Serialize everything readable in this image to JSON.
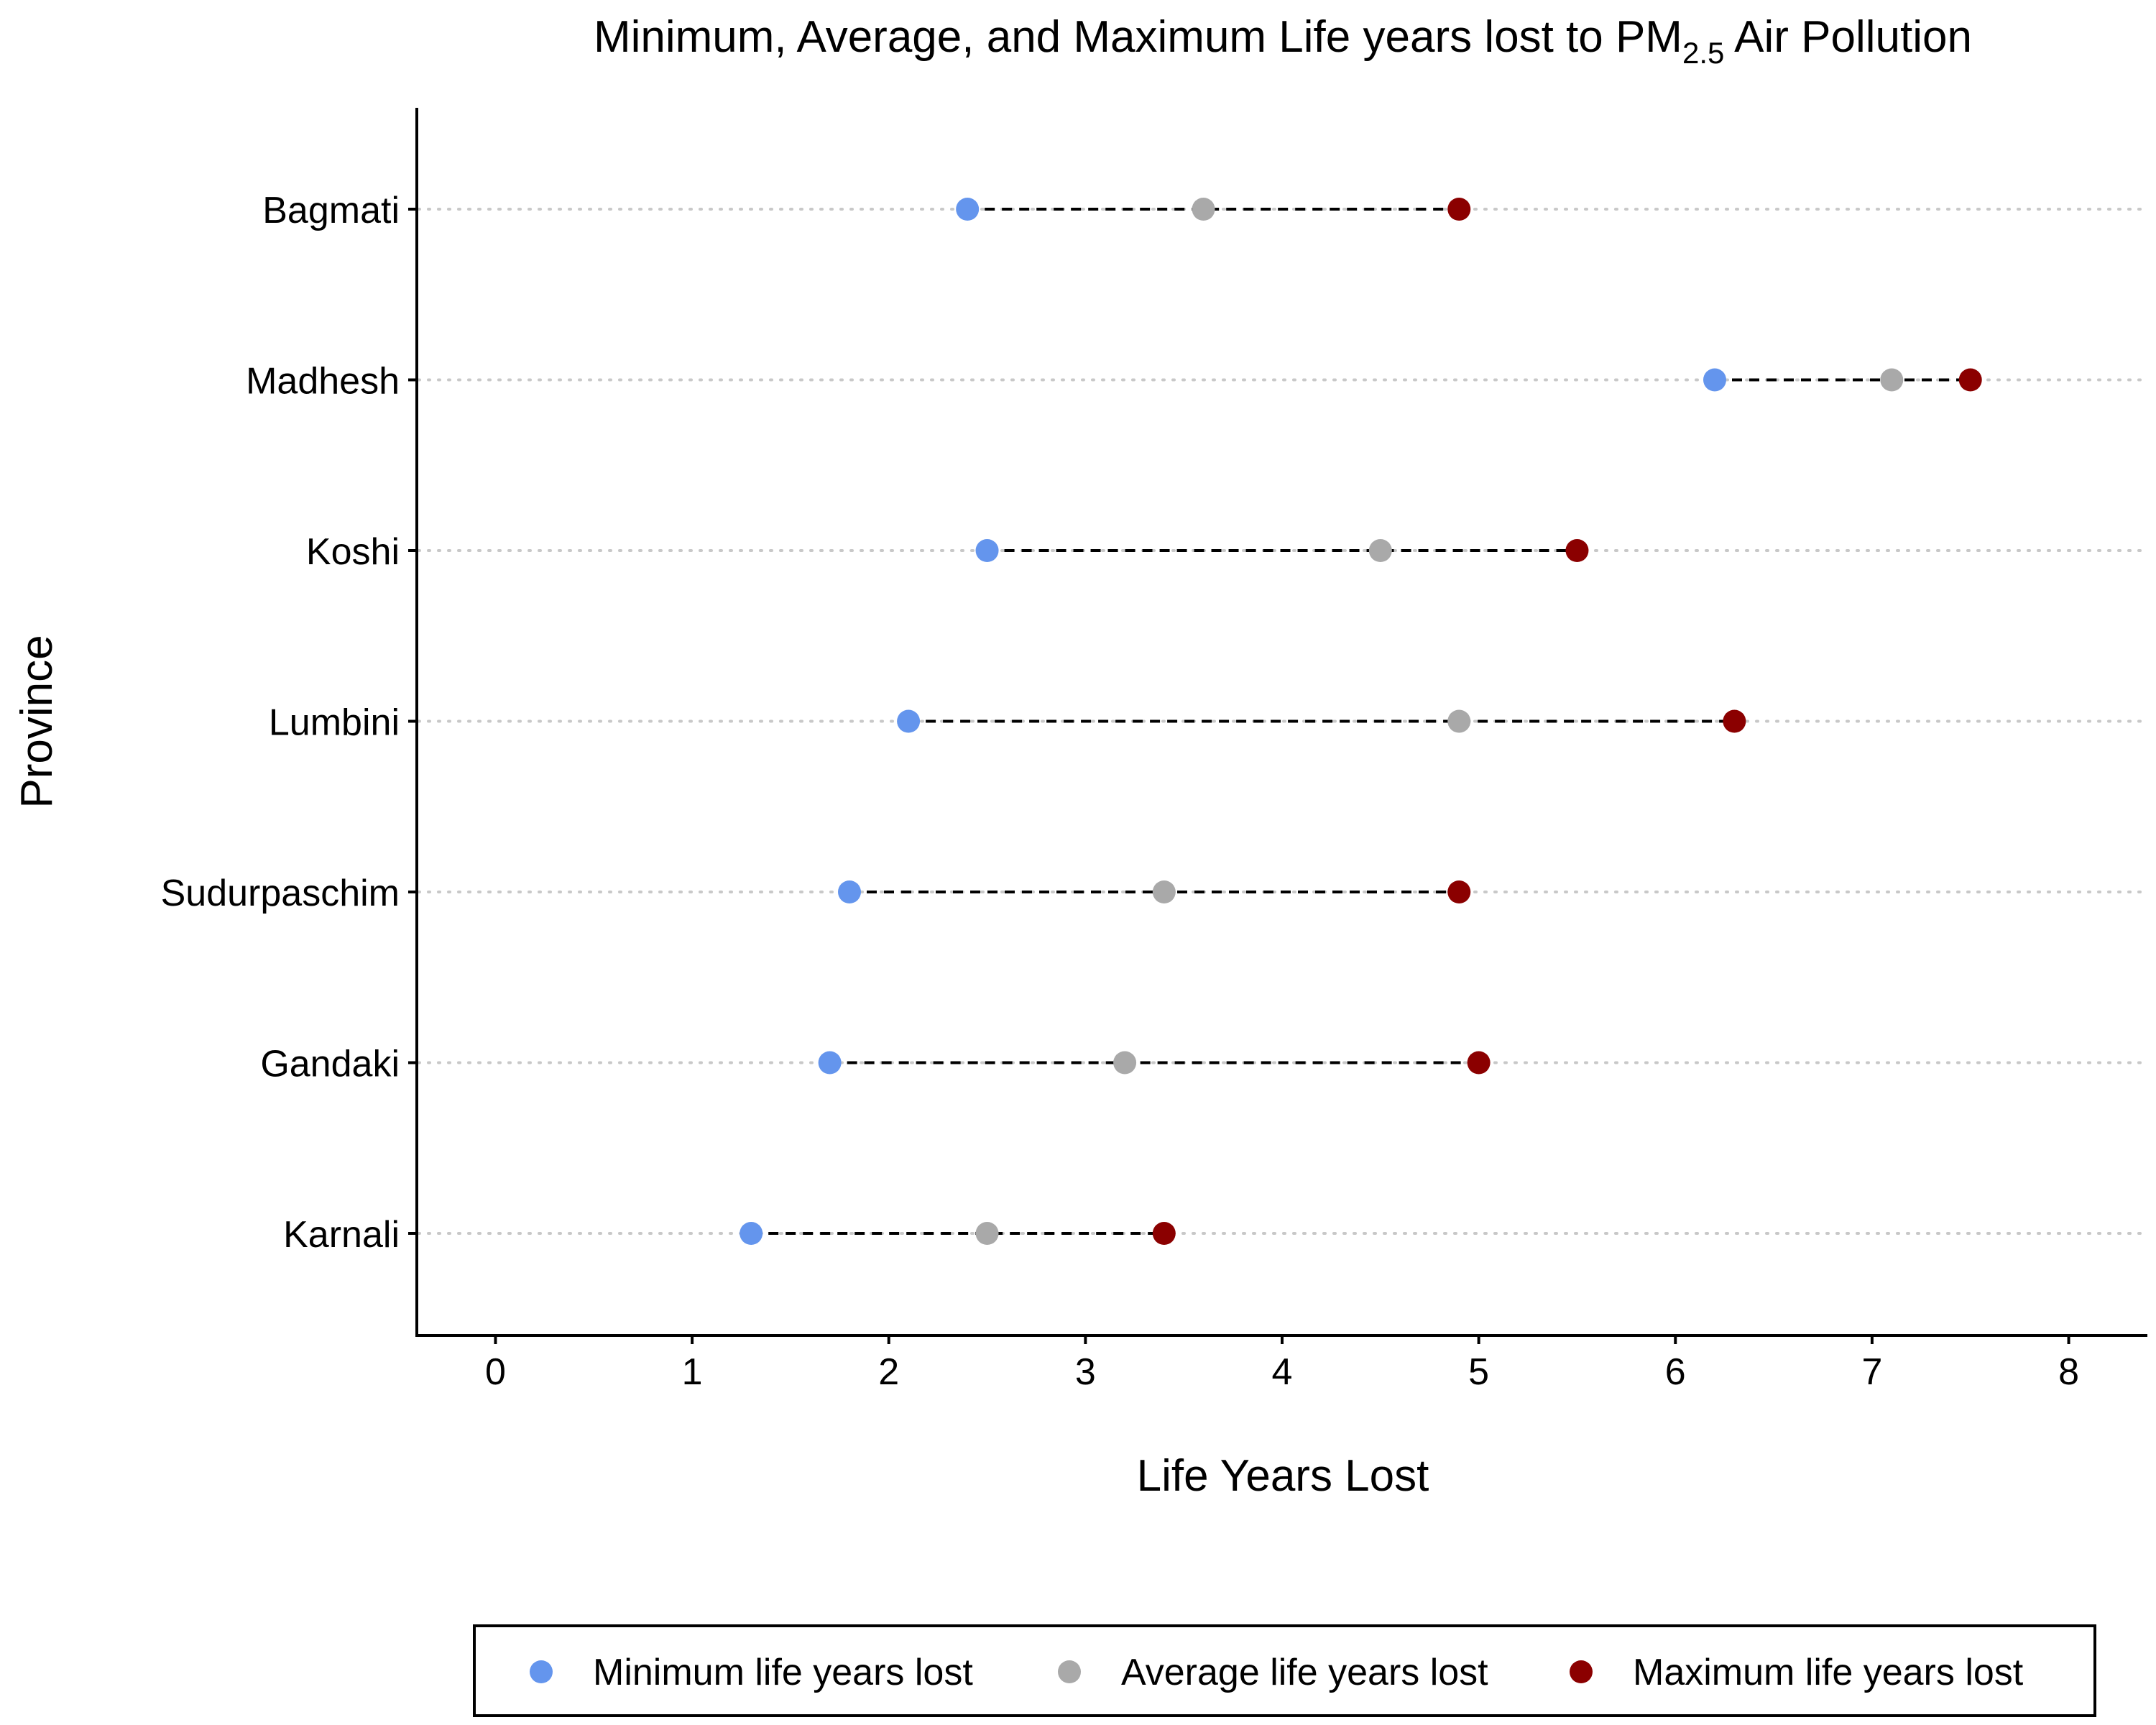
{
  "chart_data": {
    "type": "dumbbell",
    "title": {
      "prefix": "Minimum, Average, and Maximum Life years lost to PM",
      "subscript": "2.5",
      "suffix": " Air Pollution"
    },
    "xlabel": "Life Years Lost",
    "ylabel": "Province",
    "xlim": [
      -0.4,
      8.4
    ],
    "x_ticks": [
      0,
      1,
      2,
      3,
      4,
      5,
      6,
      7,
      8
    ],
    "categories": [
      "Bagmati",
      "Madhesh",
      "Koshi",
      "Lumbini",
      "Sudurpaschim",
      "Gandaki",
      "Karnali"
    ],
    "series": [
      {
        "name": "Minimum life years lost",
        "color": "#6495ED",
        "values": [
          2.4,
          6.2,
          2.5,
          2.1,
          1.8,
          1.7,
          1.3
        ]
      },
      {
        "name": "Average life years lost",
        "color": "#A9A9A9",
        "values": [
          3.6,
          7.1,
          4.5,
          4.9,
          3.4,
          3.2,
          2.5
        ]
      },
      {
        "name": "Maximum life years lost",
        "color": "#8B0000",
        "values": [
          4.9,
          7.5,
          5.5,
          6.3,
          4.9,
          5.0,
          3.4
        ]
      }
    ],
    "connector": "dashed line from minimum to maximum",
    "grid": "horizontal dotted lines at each province",
    "legend_position": "bottom"
  }
}
